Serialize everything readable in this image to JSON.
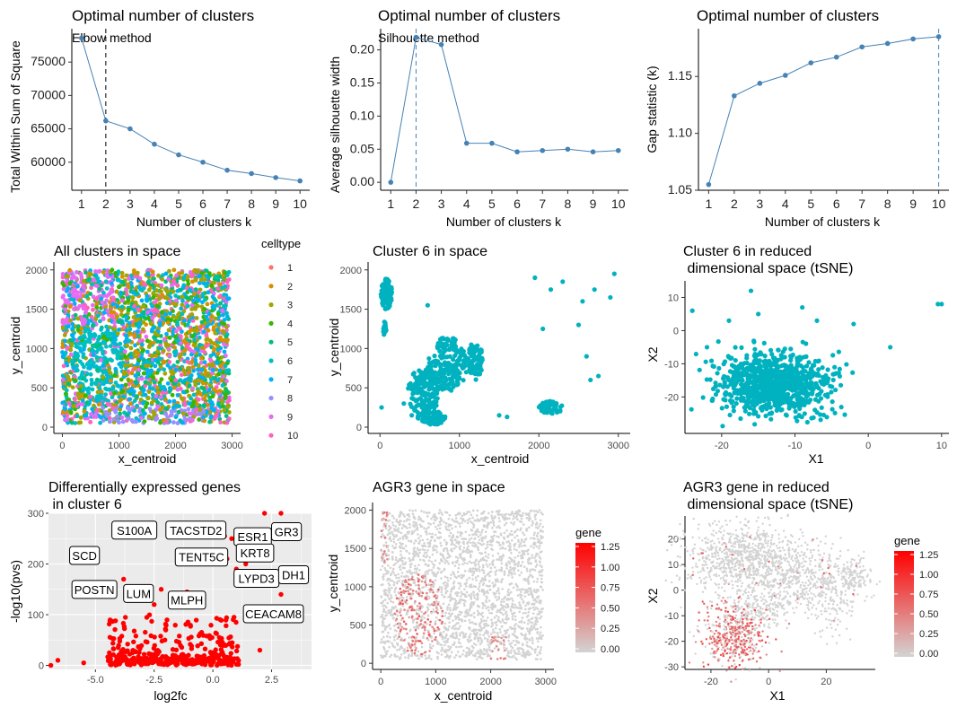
{
  "panels": {
    "elbow": {
      "title": "Optimal number of clusters",
      "subtitle": "Elbow method",
      "xlabel": "Number of clusters k",
      "ylabel": "Total Within Sum of Square",
      "color": "#4682B4"
    },
    "silhouette": {
      "title": "Optimal number of clusters",
      "subtitle": "Silhouette method",
      "xlabel": "Number of clusters k",
      "ylabel": "Average silhouette width",
      "color": "#4682B4"
    },
    "gap": {
      "title": "Optimal number of clusters",
      "xlabel": "Number of clusters k",
      "ylabel": "Gap statistic (k)",
      "color": "#4682B4"
    },
    "all_space": {
      "title": "All clusters in space",
      "xlabel": "x_centroid",
      "ylabel": "y_centroid",
      "legend_title": "celltype"
    },
    "c6_space": {
      "title": "Cluster 6 in space",
      "xlabel": "x_centroid",
      "ylabel": "y_centroid",
      "color": "#00B2BF"
    },
    "c6_tsne": {
      "title_line1": "Cluster 6 in reduced",
      "title_line2": " dimensional space (tSNE)",
      "xlabel": "X1",
      "ylabel": "X2",
      "color": "#00B2BF"
    },
    "volcano": {
      "title_line1": "Differentially expressed genes",
      "title_line2": " in cluster 6",
      "xlabel": "log2fc",
      "ylabel": "-log10(pvs)",
      "color": "#FF0000"
    },
    "agr3_space": {
      "title": "AGR3 gene in space",
      "xlabel": "x_centroid",
      "ylabel": "y_centroid",
      "legend_title": "gene"
    },
    "agr3_tsne": {
      "title_line1": "AGR3 gene in reduced",
      "title_line2": " dimensional space (tSNE)",
      "xlabel": "X1",
      "ylabel": "X2",
      "legend_title": "gene"
    }
  },
  "chart_data": [
    {
      "id": "elbow",
      "type": "line",
      "x": [
        1,
        2,
        3,
        4,
        5,
        6,
        7,
        8,
        9,
        10
      ],
      "y": [
        78600,
        66200,
        65000,
        62700,
        61100,
        60000,
        58800,
        58300,
        57700,
        57200
      ],
      "xlim": [
        0.6,
        10.4
      ],
      "ylim": [
        55800,
        80000
      ],
      "xticks": [
        "1",
        "2",
        "3",
        "4",
        "5",
        "6",
        "7",
        "8",
        "9",
        "10"
      ],
      "yticks": [
        60000,
        65000,
        70000,
        75000
      ],
      "ytick_labels": [
        "60000",
        "65000",
        "70000",
        "75000"
      ],
      "vline": 2
    },
    {
      "id": "silhouette",
      "type": "line",
      "x": [
        1,
        2,
        3,
        4,
        5,
        6,
        7,
        8,
        9,
        10
      ],
      "y": [
        0.0,
        0.219,
        0.208,
        0.059,
        0.059,
        0.046,
        0.048,
        0.05,
        0.046,
        0.048
      ],
      "xlim": [
        0.6,
        10.4
      ],
      "ylim": [
        -0.012,
        0.232
      ],
      "xticks": [
        "1",
        "2",
        "3",
        "4",
        "5",
        "6",
        "7",
        "8",
        "9",
        "10"
      ],
      "yticks": [
        0,
        0.05,
        0.1,
        0.15,
        0.2
      ],
      "ytick_labels": [
        "0.00",
        "0.05",
        "0.10",
        "0.15",
        "0.20"
      ],
      "vline": 2
    },
    {
      "id": "gap",
      "type": "line",
      "x": [
        1,
        2,
        3,
        4,
        5,
        6,
        7,
        8,
        9,
        10
      ],
      "y": [
        1.055,
        1.133,
        1.144,
        1.151,
        1.162,
        1.167,
        1.176,
        1.179,
        1.183,
        1.185
      ],
      "xlim": [
        0.6,
        10.4
      ],
      "ylim": [
        1.05,
        1.192
      ],
      "xticks": [
        "1",
        "2",
        "3",
        "4",
        "5",
        "6",
        "7",
        "8",
        "9",
        "10"
      ],
      "yticks": [
        1.05,
        1.1,
        1.15
      ],
      "ytick_labels": [
        "1.05",
        "1.10",
        "1.15"
      ],
      "vline": 10
    },
    {
      "id": "all_space",
      "type": "scatter",
      "xlim": [
        -150,
        3150
      ],
      "ylim": [
        -80,
        2100
      ],
      "xticks": [
        0,
        1000,
        2000,
        3000
      ],
      "xtick_labels": [
        "0",
        "1000",
        "2000",
        "3000"
      ],
      "yticks": [
        0,
        500,
        1000,
        1500,
        2000
      ],
      "ytick_labels": [
        "0",
        "500",
        "1000",
        "1500",
        "2000"
      ],
      "legend": [
        "1",
        "2",
        "3",
        "4",
        "5",
        "6",
        "7",
        "8",
        "9",
        "10"
      ],
      "colors": [
        "#F8766D",
        "#D89000",
        "#A3A500",
        "#39B600",
        "#00BF7D",
        "#00BFC4",
        "#00B0F6",
        "#9590FF",
        "#E76BF3",
        "#FF62BC"
      ]
    },
    {
      "id": "c6_space",
      "type": "scatter",
      "xlim": [
        -150,
        3150
      ],
      "ylim": [
        -80,
        2100
      ],
      "xticks": [
        0,
        1000,
        2000,
        3000
      ],
      "xtick_labels": [
        "0",
        "1000",
        "2000",
        "3000"
      ],
      "yticks": [
        0,
        500,
        1000,
        1500,
        2000
      ],
      "ytick_labels": [
        "0",
        "500",
        "1000",
        "1500",
        "2000"
      ]
    },
    {
      "id": "c6_tsne",
      "type": "scatter",
      "xlim": [
        -25,
        11
      ],
      "ylim": [
        -31,
        15
      ],
      "xticks": [
        -20,
        -10,
        0,
        10
      ],
      "xtick_labels": [
        "-20",
        "-10",
        "0",
        "10"
      ],
      "yticks": [
        -20,
        -10,
        0,
        10
      ],
      "ytick_labels": [
        "-20",
        "-10",
        "0",
        "10"
      ],
      "outliers": [
        [
          -24,
          6
        ],
        [
          -19,
          3
        ],
        [
          -16,
          12
        ],
        [
          -9,
          7
        ],
        [
          -7,
          3
        ],
        [
          -2,
          2
        ],
        [
          3,
          -5
        ],
        [
          9.5,
          8
        ],
        [
          10,
          8
        ],
        [
          -15,
          5
        ],
        [
          -22,
          -5
        ]
      ]
    },
    {
      "id": "volcano",
      "type": "scatter",
      "xlim": [
        -7,
        4.2
      ],
      "ylim": [
        -8,
        300
      ],
      "xticks": [
        -5,
        -2.5,
        0,
        2.5
      ],
      "xtick_labels": [
        "-5.0",
        "-2.5",
        "0.0",
        "2.5"
      ],
      "yticks": [
        0,
        100,
        200,
        300
      ],
      "ytick_labels": [
        "0",
        "100",
        "200",
        "300"
      ],
      "labels": [
        {
          "text": "S100A",
          "x": -4.3,
          "y": 265
        },
        {
          "text": "TACSTD2",
          "x": -2.0,
          "y": 265
        },
        {
          "text": "ESR1",
          "x": 0.9,
          "y": 252
        },
        {
          "text": "GR3",
          "x": 2.5,
          "y": 262
        },
        {
          "text": "SCD",
          "x": -6.1,
          "y": 215
        },
        {
          "text": "TENT5C",
          "x": -1.6,
          "y": 212
        },
        {
          "text": "KRT8",
          "x": 1.0,
          "y": 220
        },
        {
          "text": "LYPD3",
          "x": 0.9,
          "y": 170
        },
        {
          "text": "DH1",
          "x": 2.8,
          "y": 177
        },
        {
          "text": "POSTN",
          "x": -6.0,
          "y": 148
        },
        {
          "text": "LUM",
          "x": -3.8,
          "y": 140
        },
        {
          "text": "MLPH",
          "x": -1.9,
          "y": 127
        },
        {
          "text": "CEACAM8",
          "x": 1.3,
          "y": 100
        }
      ]
    },
    {
      "id": "agr3_space",
      "type": "scatter",
      "xlim": [
        -150,
        3150
      ],
      "ylim": [
        -80,
        2100
      ],
      "xticks": [
        0,
        1000,
        2000,
        3000
      ],
      "xtick_labels": [
        "0",
        "1000",
        "2000",
        "3000"
      ],
      "yticks": [
        0,
        500,
        1000,
        1500,
        2000
      ],
      "ytick_labels": [
        "0",
        "500",
        "1000",
        "1500",
        "2000"
      ],
      "colorbar_ticks": [
        "1.25",
        "1.00",
        "0.75",
        "0.50",
        "0.25",
        "0.00"
      ],
      "low_color": "#D3D3D3",
      "high_color": "#FF0000"
    },
    {
      "id": "agr3_tsne",
      "type": "scatter",
      "xlim": [
        -29,
        37
      ],
      "ylim": [
        -31,
        29
      ],
      "xticks": [
        -20,
        0,
        20
      ],
      "xtick_labels": [
        "-20",
        "0",
        "20"
      ],
      "yticks": [
        -30,
        -20,
        -10,
        0,
        10,
        20
      ],
      "ytick_labels": [
        "-30",
        "-20",
        "-10",
        "0",
        "10",
        "20"
      ],
      "colorbar_ticks": [
        "1.25",
        "1.00",
        "0.75",
        "0.50",
        "0.25",
        "0.00"
      ],
      "low_color": "#D3D3D3",
      "high_color": "#FF0000"
    }
  ]
}
